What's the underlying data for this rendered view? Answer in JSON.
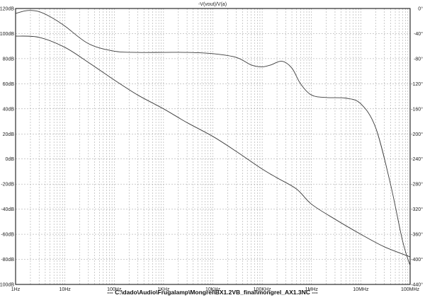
{
  "chart_data": {
    "type": "line",
    "title": "-V(vout)/V(a)",
    "x_scale": "log",
    "xlim": [
      1,
      100000000
    ],
    "x_ticks": [
      "1Hz",
      "10Hz",
      "100Hz",
      "1KHz",
      "10KHz",
      "100KHz",
      "1MHz",
      "10MHz",
      "100MHz"
    ],
    "left_axis": {
      "ylim": [
        -100,
        120
      ],
      "ticks": [
        "120dB",
        "100dB",
        "80dB",
        "60dB",
        "40dB",
        "20dB",
        "0dB",
        "-20dB",
        "-40dB",
        "-60dB",
        "-80dB",
        "-100dB"
      ]
    },
    "right_axis": {
      "ylim": [
        -440,
        0
      ],
      "ticks": [
        "0°",
        "-40°",
        "-80°",
        "-120°",
        "-160°",
        "-200°",
        "-240°",
        "-280°",
        "-320°",
        "-360°",
        "-400°",
        "-440°"
      ]
    },
    "series": [
      {
        "axis": "left",
        "x": [
          1,
          3,
          10,
          30,
          100,
          300,
          1000,
          3000,
          10000,
          30000,
          100000,
          200000,
          500000,
          1000000,
          3000000,
          10000000,
          30000000,
          100000000
        ],
        "y": [
          98,
          97,
          89,
          77,
          63,
          51,
          40,
          29,
          18,
          6,
          -8,
          -15,
          -24,
          -36,
          -48,
          -60,
          -70,
          -78
        ]
      },
      {
        "axis": "right",
        "x": [
          1,
          1.5,
          2,
          3,
          5,
          10,
          30,
          100,
          300,
          1000,
          3000,
          10000,
          30000,
          60000,
          100000,
          150000,
          250000,
          400000,
          600000,
          1000000,
          2000000,
          5000000,
          10000000,
          20000000,
          40000000,
          70000000,
          100000000
        ],
        "y": [
          -8,
          -4,
          -3,
          -5,
          -13,
          -28,
          -56,
          -68,
          -70,
          -70,
          -70,
          -72,
          -78,
          -90,
          -93,
          -90,
          -84,
          -95,
          -120,
          -138,
          -142,
          -143,
          -152,
          -190,
          -280,
          -370,
          -410
        ]
      }
    ]
  },
  "footer": "---  C:\\dado\\Audio\\Frugalamp\\Mongrel\\BX1.2VB_final\\mongrel_AX1.3NC  ---"
}
